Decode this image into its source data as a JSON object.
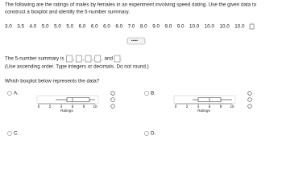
{
  "question": {
    "line1": "The following are the ratings of males by females in an experiment involving speed dating. Use the given data to",
    "line2": "construct a boxplot and identify the 5-number summary."
  },
  "data_values": [
    "3.0",
    "3.5",
    "4.0",
    "5.0",
    "5.0",
    "5.0",
    "6.0",
    "6.0",
    "6.0",
    "6.0",
    "7.0",
    "8.0",
    "9.0",
    "9.0",
    "9.0",
    "10.0",
    "10.0",
    "10.0",
    "10.0"
  ],
  "summary_prompt": {
    "before": "The 5-number summary is",
    "sep": ",",
    "and": "and",
    "end": "."
  },
  "instructions": "(Use ascending order. Type integers or decimals. Do not round.)",
  "prompt": "Which boxplot below represents the data?",
  "options": [
    {
      "label": "A.",
      "axis_label": "Ratings",
      "xlim": [
        0,
        10
      ],
      "xticks": [
        0,
        2,
        4,
        6,
        8,
        10
      ],
      "box": {
        "min": 3,
        "q1": 5,
        "median": 6,
        "q3": 9,
        "max": 10
      }
    },
    {
      "label": "B.",
      "axis_label": "Ratings",
      "xlim": [
        0,
        10
      ],
      "xticks": [
        0,
        2,
        4,
        6,
        8,
        10
      ],
      "box": {
        "min": 3,
        "q1": 4,
        "median": 6,
        "q3": 8,
        "max": 10
      }
    },
    {
      "label": "C."
    },
    {
      "label": "D."
    }
  ]
}
